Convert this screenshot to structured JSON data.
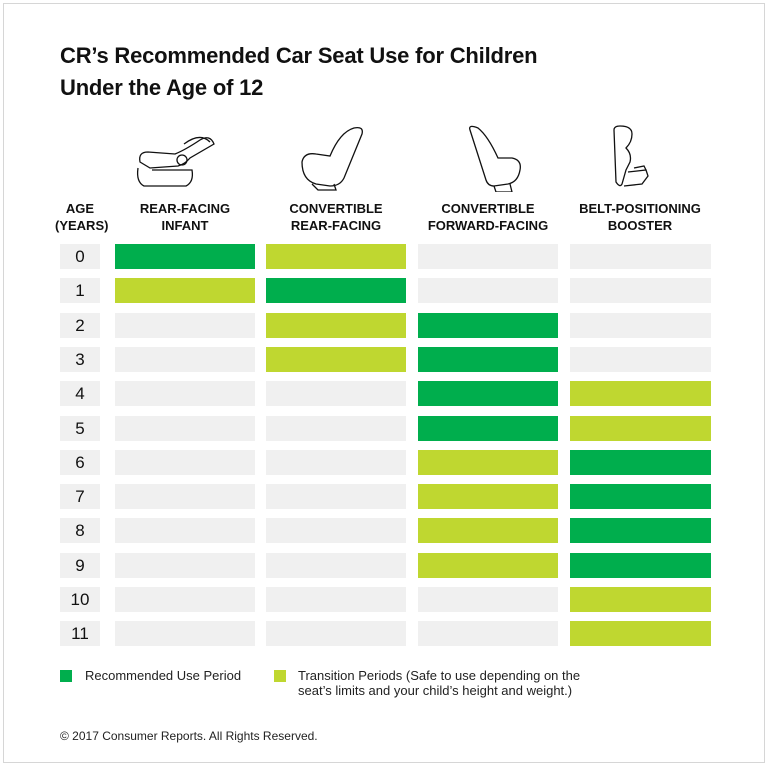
{
  "title_line1": "CR’s Recommended Car Seat Use for Children",
  "title_line2": "Under the Age of 12",
  "colors": {
    "recommended": "#00ae4d",
    "transition": "#bfd730",
    "none": "#f0f0f0"
  },
  "chart_data": {
    "type": "table",
    "row_header": [
      "AGE",
      "(YEARS)"
    ],
    "columns": [
      {
        "line1": "REAR-FACING",
        "line2": "INFANT",
        "icon": "infant-carrier-seat-icon"
      },
      {
        "line1": "CONVERTIBLE",
        "line2": "REAR-FACING",
        "icon": "convertible-rear-facing-seat-icon"
      },
      {
        "line1": "CONVERTIBLE",
        "line2": "FORWARD-FACING",
        "icon": "convertible-forward-facing-seat-icon"
      },
      {
        "line1": "BELT-POSITIONING",
        "line2": "BOOSTER",
        "icon": "booster-seat-icon"
      }
    ],
    "ages": [
      "0",
      "1",
      "2",
      "3",
      "4",
      "5",
      "6",
      "7",
      "8",
      "9",
      "10",
      "11"
    ],
    "values": [
      [
        "recommended",
        "transition",
        "none",
        "none"
      ],
      [
        "transition",
        "recommended",
        "none",
        "none"
      ],
      [
        "none",
        "transition",
        "recommended",
        "none"
      ],
      [
        "none",
        "transition",
        "recommended",
        "none"
      ],
      [
        "none",
        "none",
        "recommended",
        "transition"
      ],
      [
        "none",
        "none",
        "recommended",
        "transition"
      ],
      [
        "none",
        "none",
        "transition",
        "recommended"
      ],
      [
        "none",
        "none",
        "transition",
        "recommended"
      ],
      [
        "none",
        "none",
        "transition",
        "recommended"
      ],
      [
        "none",
        "none",
        "transition",
        "recommended"
      ],
      [
        "none",
        "none",
        "none",
        "transition"
      ],
      [
        "none",
        "none",
        "none",
        "transition"
      ]
    ],
    "legend": {
      "recommended": "Recommended Use Period",
      "transition_line1": "Transition Periods (Safe to use depending on the",
      "transition_line2": "seat’s limits and your child’s height and weight.)"
    }
  },
  "copyright": "© 2017 Consumer Reports. All Rights Reserved."
}
